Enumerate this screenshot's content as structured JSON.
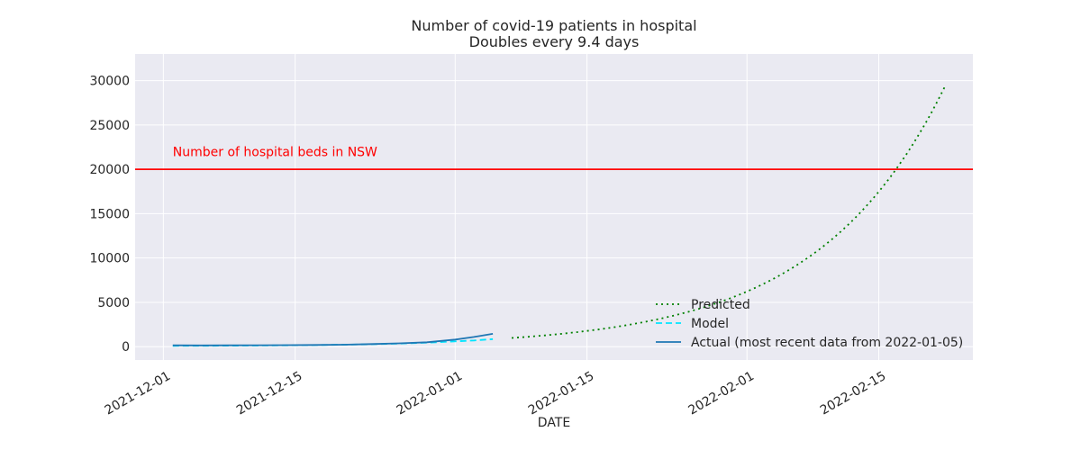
{
  "chart_data": {
    "type": "line",
    "title": "Number of covid-19 patients in hospital",
    "subtitle": "Doubles every 9.4 days",
    "xlabel": "DATE",
    "ylabel": "",
    "x_range": [
      "2021-11-28",
      "2022-02-25"
    ],
    "ylim": [
      -1500,
      33000
    ],
    "x_ticks": [
      "2021-12-01",
      "2021-12-15",
      "2022-01-01",
      "2022-01-15",
      "2022-02-01",
      "2022-02-15"
    ],
    "y_ticks": [
      0,
      5000,
      10000,
      15000,
      20000,
      25000,
      30000
    ],
    "grid": true,
    "legend_position": "lower-right",
    "reference_line": {
      "y": 20000,
      "color": "#ff0000",
      "label": "Number of hospital beds in NSW",
      "label_x": "2021-12-02",
      "label_y": 22000
    },
    "series": [
      {
        "name": "Predicted",
        "style": "dotted",
        "color": "#008000",
        "model": "doubling",
        "start_x": "2022-01-07",
        "end_x": "2022-02-22",
        "base_x": "2022-01-05",
        "base_y": 850,
        "doubling_days": 9.4
      },
      {
        "name": "Model",
        "style": "dashed",
        "color": "#00e5ff",
        "x": [
          "2021-12-02",
          "2021-12-06",
          "2021-12-10",
          "2021-12-14",
          "2021-12-18",
          "2021-12-22",
          "2021-12-26",
          "2021-12-30",
          "2022-01-03",
          "2022-01-05"
        ],
        "y": [
          90,
          100,
          120,
          150,
          190,
          260,
          350,
          500,
          700,
          850
        ]
      },
      {
        "name": "Actual (most recent data from 2022-01-05)",
        "style": "solid",
        "color": "#1f77b4",
        "x": [
          "2021-12-02",
          "2021-12-05",
          "2021-12-08",
          "2021-12-11",
          "2021-12-14",
          "2021-12-17",
          "2021-12-20",
          "2021-12-23",
          "2021-12-26",
          "2021-12-29",
          "2021-12-31",
          "2022-01-01",
          "2022-01-03",
          "2022-01-05"
        ],
        "y": [
          150,
          140,
          150,
          160,
          170,
          190,
          230,
          300,
          380,
          500,
          700,
          800,
          1100,
          1450
        ]
      }
    ]
  }
}
